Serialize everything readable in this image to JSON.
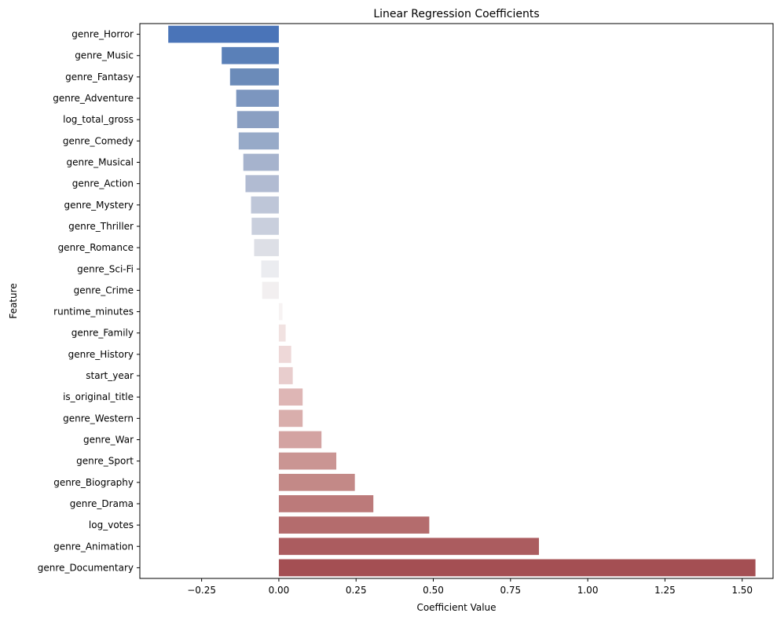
{
  "chart_data": {
    "type": "bar",
    "orientation": "horizontal",
    "title": "Linear Regression Coefficients",
    "xlabel": "Coefficient Value",
    "ylabel": "Feature",
    "xlim": [
      -0.45,
      1.6
    ],
    "xticks": [
      -0.25,
      0.0,
      0.25,
      0.5,
      0.75,
      1.0,
      1.25,
      1.5
    ],
    "xtick_labels": [
      "−0.25",
      "0.00",
      "0.25",
      "0.50",
      "0.75",
      "1.00",
      "1.25",
      "1.50"
    ],
    "grid": false,
    "legend": "none",
    "palette": "vlag (blue to red diverging)",
    "categories": [
      "genre_Horror",
      "genre_Music",
      "genre_Fantasy",
      "genre_Adventure",
      "log_total_gross",
      "genre_Comedy",
      "genre_Musical",
      "genre_Action",
      "genre_Mystery",
      "genre_Thriller",
      "genre_Romance",
      "genre_Sci-Fi",
      "genre_Crime",
      "runtime_minutes",
      "genre_Family",
      "genre_History",
      "start_year",
      "is_original_title",
      "genre_Western",
      "genre_War",
      "genre_Sport",
      "genre_Biography",
      "genre_Drama",
      "log_votes",
      "genre_Animation",
      "genre_Documentary"
    ],
    "values": [
      -0.358,
      -0.185,
      -0.158,
      -0.138,
      -0.135,
      -0.13,
      -0.115,
      -0.108,
      -0.09,
      -0.088,
      -0.08,
      -0.057,
      -0.054,
      0.012,
      0.022,
      0.04,
      0.045,
      0.077,
      0.077,
      0.138,
      0.186,
      0.246,
      0.306,
      0.487,
      0.842,
      1.543
    ],
    "colors": [
      "#4a74b8",
      "#5a80b8",
      "#6b8bb9",
      "#7c96bf",
      "#8a9fc2",
      "#97aac8",
      "#a6b3cd",
      "#b1bbd2",
      "#bec6d8",
      "#c9cfdd",
      "#dddfe6",
      "#ebecf0",
      "#f2eff0",
      "#f7f3f3",
      "#f1e2e1",
      "#eed8d8",
      "#e8cdcd",
      "#deb6b5",
      "#d9aeac",
      "#d3a3a2",
      "#ca9593",
      "#c38987",
      "#bc7a7a",
      "#b46c6d",
      "#ab5c5f",
      "#a44f53"
    ]
  }
}
